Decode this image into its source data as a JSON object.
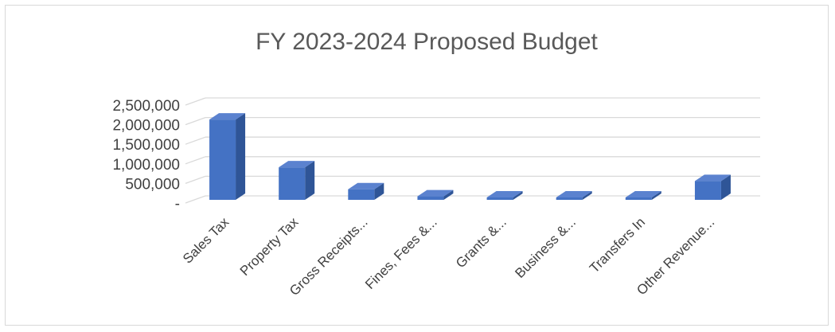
{
  "chart_data": {
    "type": "bar",
    "title": "FY 2023-2024 Proposed Budget",
    "xlabel": "",
    "ylabel": "",
    "categories": [
      "Sales Tax",
      "Property Tax",
      "Gross Receipts...",
      "Fines, Fees &...",
      "Grants &...",
      "Business &...",
      "Transfers In",
      "Other Revenue..."
    ],
    "values": [
      2050000,
      830000,
      270000,
      90000,
      40000,
      60000,
      30000,
      480000
    ],
    "y_tick_labels": [
      "-",
      "500,000",
      "1,000,000",
      "1,500,000",
      "2,000,000",
      "2,500,000"
    ],
    "y_ticks": [
      0,
      500000,
      1000000,
      1500000,
      2000000,
      2500000
    ],
    "ylim": [
      0,
      2500000
    ],
    "grid": true,
    "style": "3d-clustered-column",
    "colors": {
      "front": "#4472c4",
      "side": "#2f5597",
      "top": "#5b82cf",
      "grid": "#d9d9d9"
    }
  }
}
